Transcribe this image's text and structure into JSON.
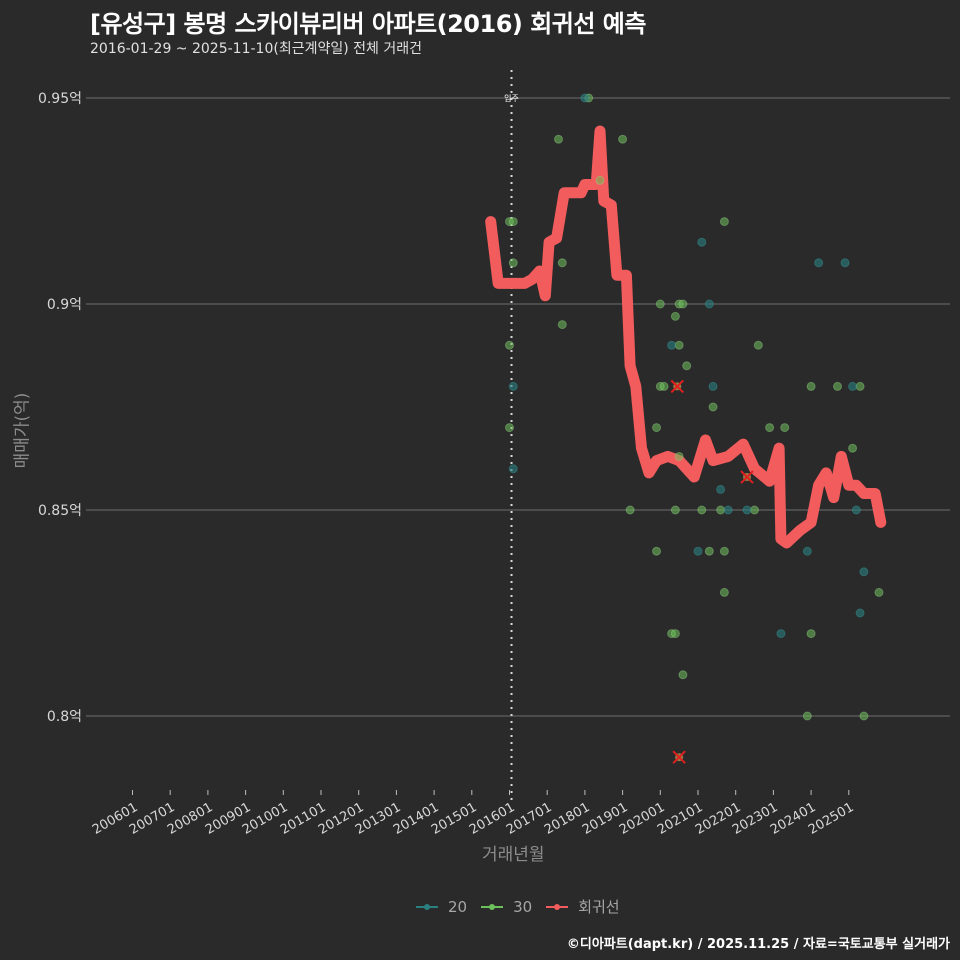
{
  "header": {
    "title": "[유성구] 봉명 스카이뷰리버 아파트(2016) 회귀선 예측",
    "subtitle": "2016-01-29 ~ 2025-11-10(최근계약일) 전체 거래건"
  },
  "footer": {
    "credit": "©디아파트(dapt.kr) / 2025.11.25 / 자료=국토교통부 실거래가"
  },
  "colors": {
    "background": "#2a2a2b",
    "grid": "#6e6e6e",
    "series_20": "#2a7f7f",
    "series_30": "#6cbf5a",
    "regression": "#f25c5c",
    "outlier_mark": "#e02020"
  },
  "chart_data": {
    "type": "scatter",
    "title": "[유성구] 봉명 스카이뷰리버 아파트(2016) 회귀선 예측",
    "subtitle": "2016-01-29 ~ 2025-11-10(최근계약일) 전체 거래건",
    "xlabel": "거래년월",
    "ylabel": "매매가(억)",
    "ylim": [
      0.78,
      0.96
    ],
    "y_ticks": [
      "0.8억",
      "0.85억",
      "0.9억",
      "0.95억"
    ],
    "y_tick_values": [
      0.8,
      0.85,
      0.9,
      0.95
    ],
    "x_ticks": [
      "200601",
      "200701",
      "200801",
      "200901",
      "201001",
      "201101",
      "201201",
      "201301",
      "201401",
      "201501",
      "201601",
      "201701",
      "201801",
      "201901",
      "202001",
      "202101",
      "202201",
      "202301",
      "202401",
      "202501"
    ],
    "grid": true,
    "legend_position": "bottom",
    "legend": [
      "20",
      "30",
      "회귀선"
    ],
    "annotations": [
      {
        "label": "입주",
        "x": 2016.08,
        "type": "vertical-dotted-line"
      }
    ],
    "series": [
      {
        "name": "20",
        "type": "scatter",
        "points": [
          [
            2016.1,
            0.88
          ],
          [
            2016.1,
            0.86
          ],
          [
            2018.0,
            0.95
          ],
          [
            2020.3,
            0.89
          ],
          [
            2021.1,
            0.915
          ],
          [
            2021.3,
            0.9
          ],
          [
            2021.4,
            0.88
          ],
          [
            2021.6,
            0.855
          ],
          [
            2021.8,
            0.85
          ],
          [
            2022.3,
            0.85
          ],
          [
            2023.2,
            0.82
          ],
          [
            2023.9,
            0.84
          ],
          [
            2024.2,
            0.91
          ],
          [
            2024.9,
            0.91
          ],
          [
            2025.1,
            0.88
          ],
          [
            2025.2,
            0.85
          ],
          [
            2025.3,
            0.825
          ],
          [
            2025.4,
            0.835
          ],
          [
            2021.0,
            0.84
          ]
        ]
      },
      {
        "name": "30",
        "type": "scatter",
        "points": [
          [
            2016.0,
            0.92
          ],
          [
            2016.1,
            0.92
          ],
          [
            2016.1,
            0.91
          ],
          [
            2016.0,
            0.89
          ],
          [
            2016.0,
            0.87
          ],
          [
            2017.4,
            0.91
          ],
          [
            2017.4,
            0.895
          ],
          [
            2017.3,
            0.94
          ],
          [
            2018.1,
            0.95
          ],
          [
            2018.4,
            0.93
          ],
          [
            2019.0,
            0.94
          ],
          [
            2019.2,
            0.85
          ],
          [
            2019.9,
            0.87
          ],
          [
            2019.9,
            0.84
          ],
          [
            2020.0,
            0.9
          ],
          [
            2020.0,
            0.88
          ],
          [
            2020.1,
            0.88
          ],
          [
            2020.3,
            0.82
          ],
          [
            2020.4,
            0.82
          ],
          [
            2020.4,
            0.897
          ],
          [
            2020.4,
            0.85
          ],
          [
            2020.5,
            0.89
          ],
          [
            2020.5,
            0.9
          ],
          [
            2020.6,
            0.9
          ],
          [
            2020.7,
            0.885
          ],
          [
            2020.5,
            0.863
          ],
          [
            2021.1,
            0.85
          ],
          [
            2021.3,
            0.84
          ],
          [
            2021.4,
            0.875
          ],
          [
            2021.6,
            0.85
          ],
          [
            2021.7,
            0.92
          ],
          [
            2021.7,
            0.84
          ],
          [
            2021.7,
            0.83
          ],
          [
            2022.5,
            0.85
          ],
          [
            2022.6,
            0.89
          ],
          [
            2022.9,
            0.87
          ],
          [
            2023.3,
            0.87
          ],
          [
            2024.0,
            0.88
          ],
          [
            2024.0,
            0.82
          ],
          [
            2023.9,
            0.8
          ],
          [
            2024.7,
            0.88
          ],
          [
            2025.1,
            0.865
          ],
          [
            2025.3,
            0.88
          ],
          [
            2025.4,
            0.8
          ],
          [
            2025.8,
            0.83
          ],
          [
            2020.6,
            0.81
          ]
        ]
      },
      {
        "name": "회귀선",
        "type": "line",
        "points": [
          [
            2015.5,
            0.92
          ],
          [
            2015.7,
            0.905
          ],
          [
            2016.0,
            0.905
          ],
          [
            2016.4,
            0.905
          ],
          [
            2016.6,
            0.906
          ],
          [
            2016.8,
            0.908
          ],
          [
            2016.95,
            0.902
          ],
          [
            2017.05,
            0.915
          ],
          [
            2017.25,
            0.916
          ],
          [
            2017.45,
            0.927
          ],
          [
            2017.9,
            0.927
          ],
          [
            2018.0,
            0.929
          ],
          [
            2018.3,
            0.929
          ],
          [
            2018.4,
            0.942
          ],
          [
            2018.5,
            0.925
          ],
          [
            2018.7,
            0.924
          ],
          [
            2018.85,
            0.907
          ],
          [
            2019.1,
            0.907
          ],
          [
            2019.2,
            0.885
          ],
          [
            2019.35,
            0.88
          ],
          [
            2019.5,
            0.865
          ],
          [
            2019.7,
            0.859
          ],
          [
            2019.9,
            0.862
          ],
          [
            2020.2,
            0.863
          ],
          [
            2020.5,
            0.862
          ],
          [
            2020.9,
            0.858
          ],
          [
            2021.2,
            0.867
          ],
          [
            2021.4,
            0.862
          ],
          [
            2021.8,
            0.863
          ],
          [
            2022.2,
            0.866
          ],
          [
            2022.5,
            0.86
          ],
          [
            2022.9,
            0.857
          ],
          [
            2023.15,
            0.865
          ],
          [
            2023.2,
            0.843
          ],
          [
            2023.35,
            0.842
          ],
          [
            2023.7,
            0.845
          ],
          [
            2024.0,
            0.847
          ],
          [
            2024.2,
            0.856
          ],
          [
            2024.4,
            0.859
          ],
          [
            2024.6,
            0.853
          ],
          [
            2024.8,
            0.863
          ],
          [
            2025.0,
            0.856
          ],
          [
            2025.2,
            0.856
          ],
          [
            2025.4,
            0.854
          ],
          [
            2025.7,
            0.854
          ],
          [
            2025.85,
            0.847
          ]
        ]
      }
    ],
    "outliers_marked": [
      [
        2020.45,
        0.88
      ],
      [
        2020.5,
        0.79
      ],
      [
        2022.3,
        0.858
      ]
    ]
  },
  "axis": {
    "x_title": "거래년월",
    "y_title": "매매가(억)",
    "move_in_label": "입주"
  },
  "legend": {
    "items": [
      {
        "label": "20",
        "color": "#2a7f7f"
      },
      {
        "label": "30",
        "color": "#6cbf5a"
      },
      {
        "label": "회귀선",
        "color": "#f25c5c"
      }
    ]
  }
}
